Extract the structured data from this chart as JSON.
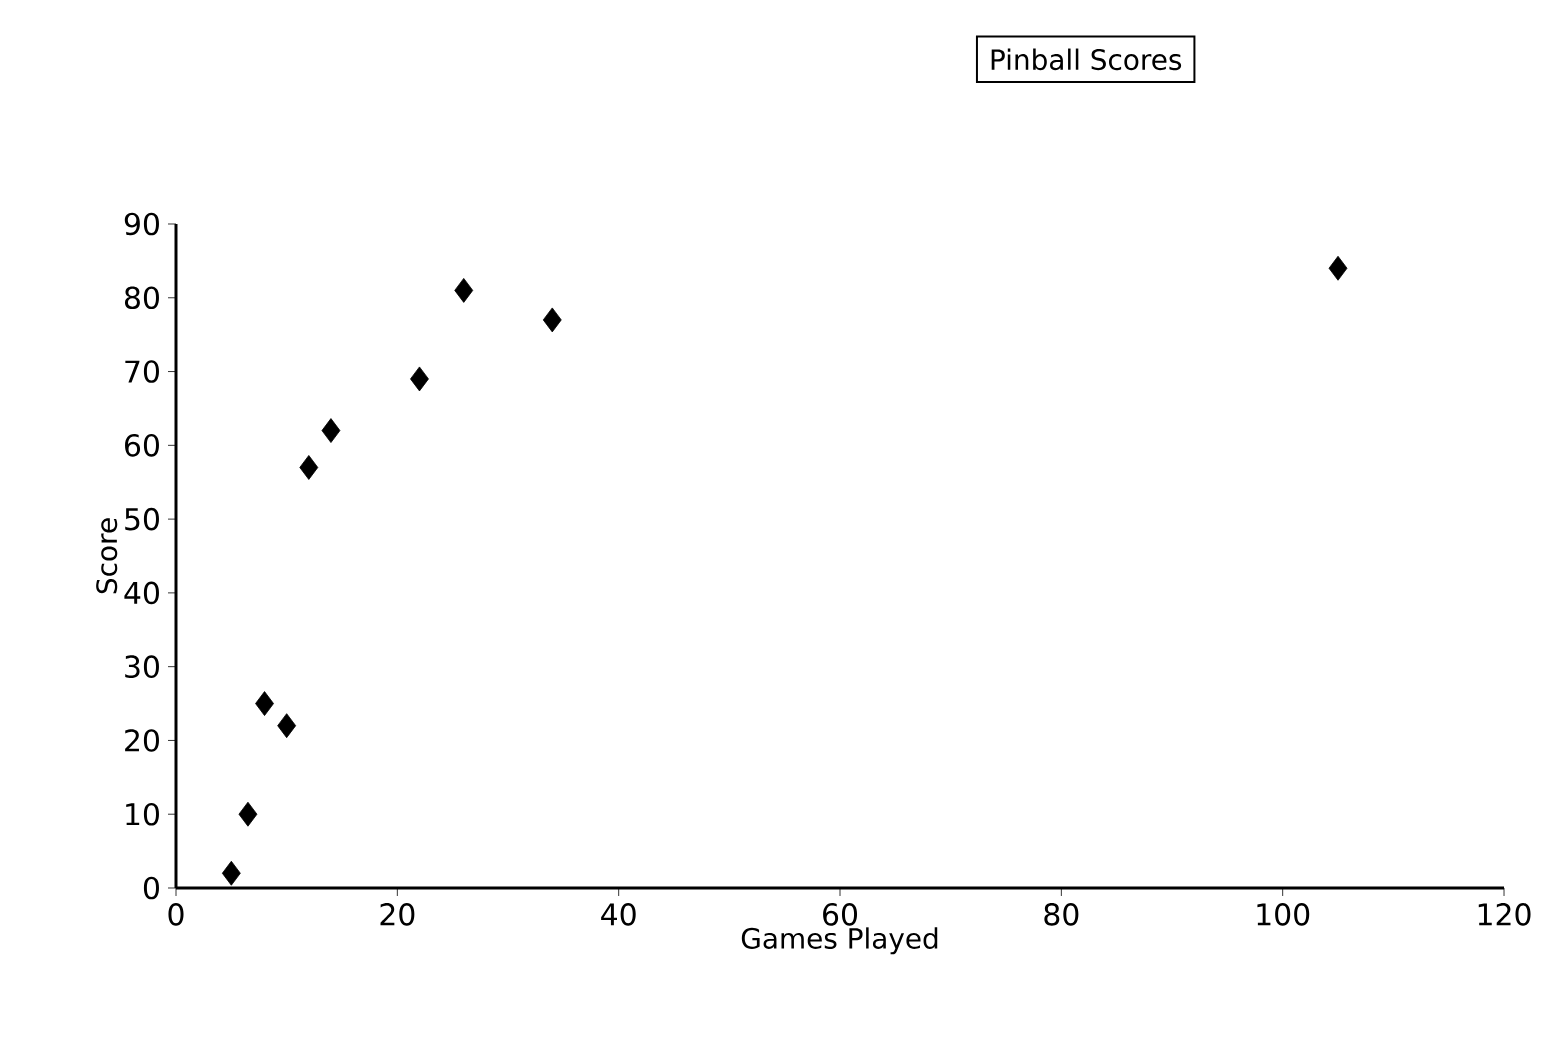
{
  "chart_data": {
    "type": "scatter",
    "title": "Pinball Scores",
    "xlabel": "Games Played",
    "ylabel": "Score",
    "x": [
      5,
      6.5,
      8,
      10,
      12,
      14,
      22,
      26,
      34,
      105
    ],
    "values": [
      2,
      10,
      25,
      22,
      57,
      62,
      69,
      81,
      77,
      84
    ],
    "color": "#000000",
    "marker": "diamond",
    "xlim": [
      0,
      120
    ],
    "ylim": [
      0,
      90
    ],
    "xticks": [
      0,
      20,
      40,
      60,
      80,
      100,
      120
    ],
    "yticks": [
      0,
      10,
      20,
      30,
      40,
      50,
      60,
      70,
      80,
      90
    ]
  }
}
